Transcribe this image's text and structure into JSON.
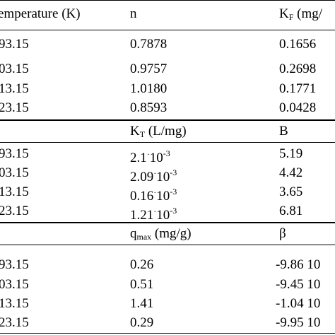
{
  "header": {
    "col1": "emperature (K)",
    "col2": "n",
    "col3_main": "K",
    "col3_sub": "F",
    "col3_rest": " (mg/"
  },
  "section1": {
    "rows": [
      {
        "t": "93.15",
        "a": "0.7878",
        "b": "0.1656"
      },
      {
        "t": "03.15",
        "a": "0.9757",
        "b": "0.2698"
      },
      {
        "t": "13.15",
        "a": "1.0180",
        "b": "0.1771"
      },
      {
        "t": "23.15",
        "a": "0.8593",
        "b": "0.0428"
      }
    ]
  },
  "section2": {
    "head_a_main": "K",
    "head_a_sub": "T",
    "head_a_rest": " (L/mg)",
    "head_b": "B",
    "rows": [
      {
        "t": "93.15",
        "mant": "2.1",
        "exp": "-3",
        "b": "5.19"
      },
      {
        "t": "03.15",
        "mant": "2.09",
        "exp": "-3",
        "b": "4.42"
      },
      {
        "t": "13.15",
        "mant": "0.16",
        "exp": "-3",
        "b": "3.65"
      },
      {
        "t": "23.15",
        "mant": "1.21",
        "exp": "-3",
        "b": "6.81"
      }
    ],
    "times": "·10"
  },
  "section3": {
    "head_a_main": "q",
    "head_a_sub": "max",
    "head_a_rest": " (mg/g)",
    "head_b": "β",
    "rows": [
      {
        "t": "93.15",
        "a": "0.26",
        "b": "-9.86 10"
      },
      {
        "t": "03.15",
        "a": "0.51",
        "b": "-9.45 10"
      },
      {
        "t": "13.15",
        "a": "1.41",
        "b": "-1.04 10"
      },
      {
        "t": "23.15",
        "a": "0.29",
        "b": "-9.95 10"
      }
    ]
  }
}
